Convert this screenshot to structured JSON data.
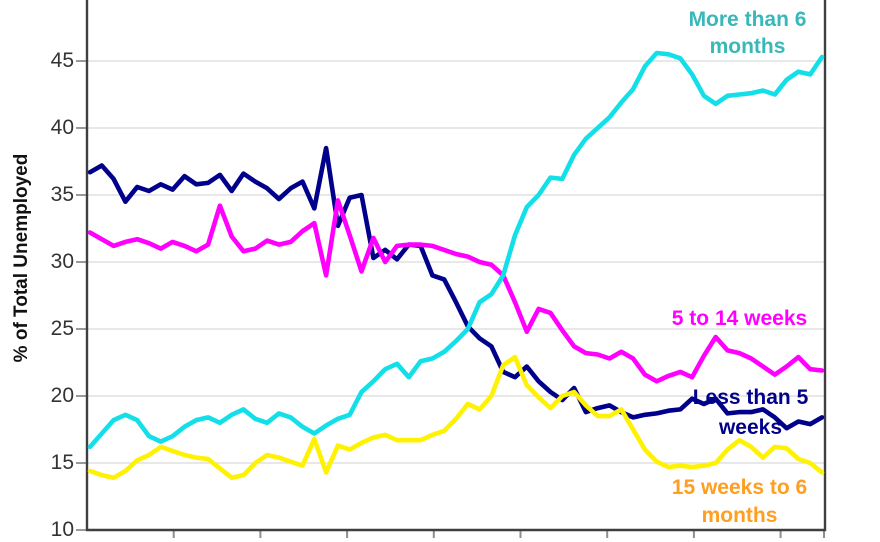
{
  "chart_data": {
    "type": "line",
    "title": "",
    "xlabel": "",
    "ylabel": "% of Total Unemployed",
    "ylim": [
      10,
      49.5
    ],
    "yticks": [
      10,
      15,
      20,
      25,
      30,
      35,
      40,
      45
    ],
    "x_tick_labels": [],
    "grid": true,
    "legend_position": "inline-annotations-right",
    "series": [
      {
        "name": "Less than 5 weeks",
        "color": "#00008B",
        "label_color": "#00008B",
        "values": [
          36.7,
          37.2,
          36.2,
          34.5,
          35.6,
          35.3,
          35.8,
          35.4,
          36.4,
          35.8,
          35.9,
          36.5,
          35.3,
          36.6,
          36.0,
          35.5,
          34.7,
          35.5,
          36.0,
          34.0,
          38.5,
          32.7,
          34.8,
          35.0,
          30.3,
          30.9,
          30.2,
          31.3,
          31.2,
          29.0,
          28.7,
          27.0,
          25.2,
          24.3,
          23.7,
          21.8,
          21.4,
          22.2,
          21.1,
          20.3,
          19.7,
          20.6,
          18.8,
          19.1,
          19.3,
          18.8,
          18.4,
          18.6,
          18.7,
          18.9,
          19.0,
          19.8,
          19.4,
          19.8,
          18.7,
          18.8,
          18.8,
          19.0,
          18.4,
          17.6,
          18.1,
          17.9,
          18.4
        ]
      },
      {
        "name": "5 to 14 weeks",
        "color": "#FF00FF",
        "label_color": "#FF00FF",
        "values": [
          32.2,
          31.7,
          31.2,
          31.5,
          31.7,
          31.4,
          31.0,
          31.5,
          31.2,
          30.8,
          31.3,
          34.2,
          31.9,
          30.8,
          31.0,
          31.6,
          31.3,
          31.5,
          32.3,
          32.9,
          29.0,
          34.6,
          32.0,
          29.3,
          31.8,
          30.0,
          31.2,
          31.3,
          31.3,
          31.2,
          30.9,
          30.6,
          30.4,
          30.0,
          29.8,
          29.0,
          27.0,
          24.8,
          26.5,
          26.2,
          24.9,
          23.7,
          23.2,
          23.1,
          22.8,
          23.3,
          22.8,
          21.6,
          21.1,
          21.5,
          21.8,
          21.4,
          23.0,
          24.4,
          23.4,
          23.2,
          22.8,
          22.2,
          21.6,
          22.2,
          22.9,
          22.0,
          21.9
        ]
      },
      {
        "name": "15 weeks to 6 months",
        "color": "#FFF200",
        "label_color": "#FF9E1F",
        "values": [
          14.4,
          14.1,
          13.9,
          14.4,
          15.2,
          15.6,
          16.2,
          15.9,
          15.6,
          15.4,
          15.3,
          14.6,
          13.9,
          14.1,
          15.0,
          15.6,
          15.4,
          15.1,
          14.8,
          16.8,
          14.3,
          16.3,
          16.0,
          16.5,
          16.9,
          17.1,
          16.7,
          16.7,
          16.7,
          17.1,
          17.4,
          18.3,
          19.4,
          19.0,
          20.0,
          22.3,
          22.9,
          20.8,
          19.9,
          19.1,
          20.0,
          20.3,
          19.3,
          18.5,
          18.5,
          19.0,
          17.5,
          16.0,
          15.1,
          14.7,
          14.8,
          14.7,
          14.8,
          15.0,
          16.0,
          16.7,
          16.2,
          15.4,
          16.2,
          16.1,
          15.3,
          15.0,
          14.3
        ]
      },
      {
        "name": "More than 6 months",
        "color": "#12DFE8",
        "label_color": "#38B8B8",
        "values": [
          16.2,
          17.2,
          18.2,
          18.6,
          18.2,
          17.0,
          16.6,
          17.0,
          17.7,
          18.2,
          18.4,
          18.0,
          18.6,
          19.0,
          18.3,
          18.0,
          18.7,
          18.4,
          17.7,
          17.2,
          17.8,
          18.3,
          18.6,
          20.3,
          21.1,
          22.0,
          22.4,
          21.4,
          22.6,
          22.8,
          23.3,
          24.1,
          25.0,
          27.0,
          27.6,
          29.0,
          32.0,
          34.1,
          35.0,
          36.3,
          36.2,
          38.0,
          39.2,
          40.0,
          40.8,
          41.9,
          42.9,
          44.6,
          45.6,
          45.5,
          45.2,
          44.0,
          42.4,
          41.8,
          42.4,
          42.5,
          42.6,
          42.8,
          42.5,
          43.6,
          44.2,
          44.0,
          45.3
        ]
      }
    ]
  },
  "y_axis": {
    "title": "% of Total Unemployed",
    "tick_labels": [
      "45",
      "40",
      "35",
      "30",
      "25",
      "20",
      "15",
      "10"
    ]
  },
  "annotations": [
    {
      "lines": [
        "More than 6",
        "months"
      ],
      "color": "#38B8B8"
    },
    {
      "lines": [
        "5 to 14 weeks"
      ],
      "color": "#FF00FF"
    },
    {
      "lines": [
        "Less than 5",
        "weeks"
      ],
      "color": "#00008B"
    },
    {
      "lines": [
        "15 weeks to 6",
        "months"
      ],
      "color": "#FF9E1F"
    }
  ],
  "colors": {
    "gridline": "#DBDBDB",
    "axis_border": "#3F3F3F",
    "tick_mark": "#8F8F8F",
    "background": "#FFFFFF"
  }
}
